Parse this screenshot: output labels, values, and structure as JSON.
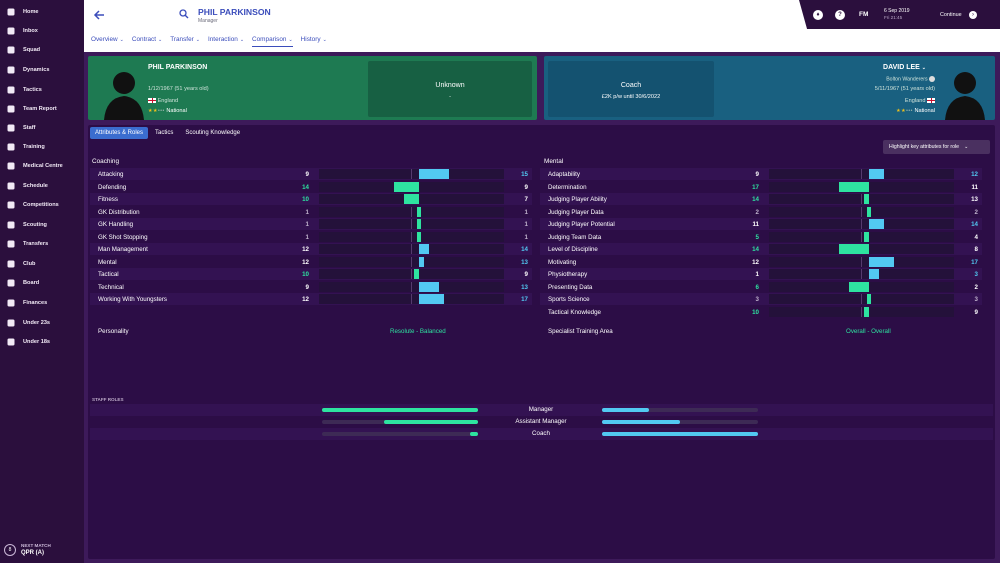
{
  "sidebar": {
    "items": [
      {
        "label": "Home",
        "icon": "home-icon"
      },
      {
        "label": "Inbox",
        "icon": "inbox-icon"
      },
      {
        "label": "Squad",
        "icon": "squad-icon"
      },
      {
        "label": "Dynamics",
        "icon": "dynamics-icon"
      },
      {
        "label": "Tactics",
        "icon": "tactics-icon"
      },
      {
        "label": "Team Report",
        "icon": "report-icon"
      },
      {
        "label": "Staff",
        "icon": "staff-icon"
      },
      {
        "label": "Training",
        "icon": "training-icon"
      },
      {
        "label": "Medical Centre",
        "icon": "medical-icon"
      },
      {
        "label": "Schedule",
        "icon": "calendar-icon"
      },
      {
        "label": "Competitions",
        "icon": "trophy-icon"
      },
      {
        "label": "Scouting",
        "icon": "scouting-icon"
      },
      {
        "label": "Transfers",
        "icon": "transfers-icon"
      },
      {
        "label": "Club",
        "icon": "club-icon"
      },
      {
        "label": "Board",
        "icon": "board-icon"
      },
      {
        "label": "Finances",
        "icon": "finances-icon"
      },
      {
        "label": "Under 23s",
        "icon": "under23-icon"
      },
      {
        "label": "Under 18s",
        "icon": "under18-icon"
      }
    ],
    "next_match": {
      "badge": "8",
      "title": "NEXT MATCH",
      "team": "QPR (A)"
    }
  },
  "header": {
    "title": "PHIL PARKINSON",
    "subtitle": "Manager",
    "tabs": [
      {
        "label": "Overview"
      },
      {
        "label": "Contract"
      },
      {
        "label": "Transfer"
      },
      {
        "label": "Interaction"
      },
      {
        "label": "Comparison",
        "active": true
      },
      {
        "label": "History"
      }
    ]
  },
  "topbar": {
    "brand": "FM",
    "help": "?",
    "date": "6 Sep 2019",
    "day": "Fri 21:45",
    "continue_label": "Continue"
  },
  "left_person": {
    "name": "PHIL PARKINSON",
    "dob": "1/12/1967 (51 years old)",
    "nation": "England",
    "reputation": "National",
    "stars_on": 2,
    "box_title": "Unknown",
    "box_sub": "-"
  },
  "right_person": {
    "name": "DAVID LEE",
    "club": "Bolton Wanderers",
    "dob": "5/11/1967 (51 years old)",
    "nation": "England",
    "reputation": "National",
    "stars_on": 2,
    "box_title": "Coach",
    "box_sub": "£2K p/w until 30/6/2022"
  },
  "panel": {
    "tabs": [
      {
        "label": "Attributes & Roles",
        "active": true
      },
      {
        "label": "Tactics"
      },
      {
        "label": "Scouting Knowledge"
      }
    ],
    "highlight_label": "Highlight key attributes for role"
  },
  "coaching": {
    "title": "Coaching",
    "rows": [
      {
        "name": "Attacking",
        "left": 9,
        "right": 15
      },
      {
        "name": "Defending",
        "left": 14,
        "right": 9
      },
      {
        "name": "Fitness",
        "left": 10,
        "right": 7
      },
      {
        "name": "GK Distribution",
        "left": 1,
        "right": 1
      },
      {
        "name": "GK Handling",
        "left": 1,
        "right": 1
      },
      {
        "name": "GK Shot Stopping",
        "left": 1,
        "right": 1
      },
      {
        "name": "Man Management",
        "left": 12,
        "right": 14
      },
      {
        "name": "Mental",
        "left": 12,
        "right": 13
      },
      {
        "name": "Tactical",
        "left": 10,
        "right": 9
      },
      {
        "name": "Technical",
        "left": 9,
        "right": 13
      },
      {
        "name": "Working With Youngsters",
        "left": 12,
        "right": 17
      }
    ]
  },
  "mental": {
    "title": "Mental",
    "rows": [
      {
        "name": "Adaptability",
        "left": 9,
        "right": 12
      },
      {
        "name": "Determination",
        "left": 17,
        "right": 11
      },
      {
        "name": "Judging Player Ability",
        "left": 14,
        "right": 13
      },
      {
        "name": "Judging Player Data",
        "left": 2,
        "right": 2
      },
      {
        "name": "Judging Player Potential",
        "left": 11,
        "right": 14
      },
      {
        "name": "Judging Team Data",
        "left": 5,
        "right": 4
      },
      {
        "name": "Level of Discipline",
        "left": 14,
        "right": 8
      },
      {
        "name": "Motivating",
        "left": 12,
        "right": 17
      },
      {
        "name": "Physiotherapy",
        "left": 1,
        "right": 3
      },
      {
        "name": "Presenting Data",
        "left": 6,
        "right": 2
      },
      {
        "name": "Sports Science",
        "left": 3,
        "right": 3
      },
      {
        "name": "Tactical Knowledge",
        "left": 10,
        "right": 9
      }
    ]
  },
  "personality": {
    "label": "Personality",
    "value": "Resolute - Balanced"
  },
  "specialist": {
    "label": "Specialist Training Area",
    "value": "Overall - Overall"
  },
  "staff_roles": {
    "title": "STAFF ROLES",
    "rows": [
      {
        "name": "Manager",
        "left": 1.0,
        "right": 0.3
      },
      {
        "name": "Assistant Manager",
        "left": 0.6,
        "right": 0.5
      },
      {
        "name": "Coach",
        "left": 0.05,
        "right": 1.0
      }
    ]
  },
  "colors": {
    "green": "#2ee3a0",
    "blue": "#52c9f2",
    "val_neutral": "#bfb2cc"
  }
}
